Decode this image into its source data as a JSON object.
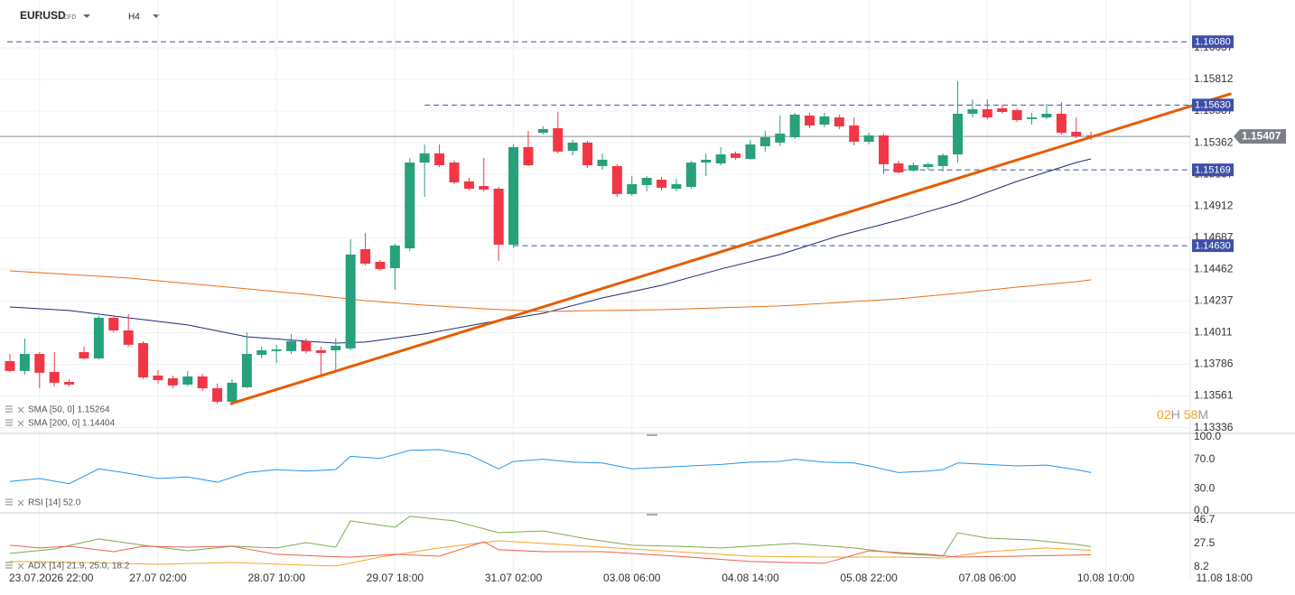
{
  "chart_data": [
    {
      "type": "candlestick",
      "symbol": "EURUSD",
      "market": "CFD",
      "timeframe": "H4",
      "up_color": "#26a17b",
      "down_color": "#f23645",
      "grid": true,
      "xlim": [
        -0.67,
        79.7
      ],
      "xticks": [
        {
          "value": 2,
          "label": "23.07.2026 22:00"
        },
        {
          "value": 10,
          "label": "27.07 02:00"
        },
        {
          "value": 18,
          "label": "28.07 10:00"
        },
        {
          "value": 26,
          "label": "29.07 18:00"
        },
        {
          "value": 34,
          "label": "31.07 02:00"
        },
        {
          "value": 42,
          "label": "03.08 06:00"
        },
        {
          "value": 50,
          "label": "04.08 14:00"
        },
        {
          "value": 58,
          "label": "05.08 22:00"
        },
        {
          "value": 66,
          "label": "07.08 06:00"
        },
        {
          "value": 74,
          "label": "10.08 10:00"
        },
        {
          "value": 82,
          "label": "11.08 18:00"
        }
      ],
      "ylim": [
        1.13295,
        1.16377
      ],
      "yticks": [
        1.16037,
        1.15812,
        1.15587,
        1.15362,
        1.15137,
        1.14912,
        1.14687,
        1.14462,
        1.14237,
        1.14011,
        1.13786,
        1.13561,
        1.13336
      ],
      "open": [
        1.13809,
        1.13739,
        1.1386,
        1.13732,
        1.13661,
        1.13873,
        1.13828,
        1.14117,
        1.14027,
        1.13937,
        1.13706,
        1.13687,
        1.13642,
        1.137,
        1.13616,
        1.1352,
        1.13623,
        1.13854,
        1.1388,
        1.1388,
        1.13951,
        1.13886,
        1.13886,
        1.13899,
        1.14605,
        1.14515,
        1.1447,
        1.14611,
        1.15221,
        1.15286,
        1.15221,
        1.15087,
        1.15054,
        1.15035,
        1.14637,
        1.15331,
        1.15433,
        1.15465,
        1.15305,
        1.15363,
        1.15196,
        1.15196,
        1.14997,
        1.15061,
        1.15099,
        1.15035,
        1.15048,
        1.15221,
        1.15215,
        1.15286,
        1.15247,
        1.15337,
        1.15363,
        1.15401,
        1.15555,
        1.15491,
        1.15542,
        1.15485,
        1.15369,
        1.15414,
        1.15215,
        1.15164,
        1.15189,
        1.15196,
        1.15279,
        1.15568,
        1.156,
        1.15607,
        1.15594,
        1.1553,
        1.15542,
        1.15568,
        1.1544,
        1.15414
      ],
      "high": [
        1.1386,
        1.1397,
        1.13873,
        1.13873,
        1.13681,
        1.13912,
        1.1413,
        1.1413,
        1.14143,
        1.13951,
        1.13745,
        1.13706,
        1.13739,
        1.13719,
        1.13649,
        1.13681,
        1.14014,
        1.13912,
        1.13925,
        1.14002,
        1.1397,
        1.13912,
        1.1397,
        1.14676,
        1.14721,
        1.14528,
        1.14644,
        1.15254,
        1.1535,
        1.1535,
        1.15234,
        1.15112,
        1.15254,
        1.15048,
        1.1535,
        1.15446,
        1.15478,
        1.15581,
        1.15382,
        1.15375,
        1.15286,
        1.15209,
        1.15125,
        1.15125,
        1.15119,
        1.15106,
        1.15234,
        1.15286,
        1.15331,
        1.15299,
        1.15382,
        1.15446,
        1.15555,
        1.15575,
        1.15575,
        1.15575,
        1.15562,
        1.15542,
        1.15433,
        1.15427,
        1.15234,
        1.15221,
        1.15221,
        1.15286,
        1.15799,
        1.15671,
        1.15671,
        1.15632,
        1.15607,
        1.15575,
        1.15639,
        1.15652,
        1.15542,
        1.1544
      ],
      "low": [
        1.13732,
        1.13713,
        1.13616,
        1.13629,
        1.13629,
        1.13822,
        1.13822,
        1.14014,
        1.13912,
        1.13681,
        1.13649,
        1.13616,
        1.13629,
        1.13597,
        1.13507,
        1.13494,
        1.13616,
        1.13828,
        1.13796,
        1.1386,
        1.13867,
        1.13713,
        1.13745,
        1.13886,
        1.1449,
        1.14451,
        1.14316,
        1.14592,
        1.14977,
        1.15189,
        1.15067,
        1.15022,
        1.15016,
        1.14522,
        1.14611,
        1.15196,
        1.1542,
        1.15286,
        1.15273,
        1.15183,
        1.1517,
        1.14977,
        1.14984,
        1.15016,
        1.15022,
        1.15016,
        1.15035,
        1.15125,
        1.15202,
        1.15241,
        1.15241,
        1.15299,
        1.15337,
        1.15388,
        1.15465,
        1.15472,
        1.15459,
        1.15343,
        1.1535,
        1.15138,
        1.15144,
        1.15157,
        1.1517,
        1.15157,
        1.15221,
        1.15542,
        1.1553,
        1.15568,
        1.1551,
        1.15491,
        1.1553,
        1.1542,
        1.15395,
        1.15382
      ],
      "close": [
        1.13739,
        1.1386,
        1.13726,
        1.13655,
        1.13642,
        1.13828,
        1.14117,
        1.14027,
        1.13925,
        1.13693,
        1.13674,
        1.13636,
        1.137,
        1.13616,
        1.1352,
        1.13655,
        1.1386,
        1.13886,
        1.13892,
        1.13951,
        1.1388,
        1.13867,
        1.13918,
        1.14567,
        1.14502,
        1.14464,
        1.14631,
        1.15221,
        1.15286,
        1.15202,
        1.1508,
        1.15035,
        1.15029,
        1.14637,
        1.15331,
        1.15202,
        1.15459,
        1.15299,
        1.15363,
        1.15202,
        1.15241,
        1.14997,
        1.15067,
        1.15112,
        1.15042,
        1.15067,
        1.15221,
        1.15241,
        1.15279,
        1.15254,
        1.1535,
        1.15401,
        1.15427,
        1.15562,
        1.15485,
        1.15549,
        1.15478,
        1.15369,
        1.15414,
        1.15209,
        1.15151,
        1.15202,
        1.15209,
        1.15273,
        1.15568,
        1.156,
        1.15542,
        1.15581,
        1.15523,
        1.15542,
        1.15568,
        1.15433,
        1.15408,
        1.15407
      ],
      "series": [
        {
          "name": "SMA [50, 0] 1.15264",
          "color": "#1f2a78",
          "x": [
            0,
            4,
            8,
            12,
            16,
            20,
            22,
            24,
            28,
            32,
            36,
            40,
            44,
            48,
            52,
            56,
            60,
            64,
            68,
            72,
            73
          ],
          "values": [
            1.14194,
            1.14169,
            1.14117,
            1.14066,
            1.13982,
            1.13951,
            1.13937,
            1.13944,
            1.14002,
            1.14079,
            1.14149,
            1.14258,
            1.14348,
            1.14464,
            1.14567,
            1.14701,
            1.14811,
            1.14933,
            1.15087,
            1.15221,
            1.15247
          ]
        },
        {
          "name": "SMA [200, 0] 1.14404",
          "color": "#e8701a",
          "x": [
            0,
            4,
            8,
            12,
            16,
            20,
            24,
            28,
            32,
            36,
            40,
            44,
            48,
            52,
            56,
            60,
            64,
            68,
            72,
            73
          ],
          "values": [
            1.14451,
            1.14425,
            1.144,
            1.14361,
            1.14323,
            1.14284,
            1.14239,
            1.14207,
            1.14181,
            1.14162,
            1.14169,
            1.14175,
            1.14188,
            1.14201,
            1.14226,
            1.14252,
            1.14291,
            1.14335,
            1.14374,
            1.14387
          ]
        }
      ],
      "trendline": {
        "color": "#e65c00",
        "x": [
          14.94,
          82.4
        ],
        "values": [
          1.13507,
          1.15709
        ]
      },
      "levels": [
        {
          "value": 1.1608,
          "label": "1.16080"
        },
        {
          "value": 1.1563,
          "label": "1.15630",
          "from": 28
        },
        {
          "value": 1.15169,
          "label": "1.15169",
          "from": 59
        },
        {
          "value": 1.1463,
          "label": "1.14630",
          "from": 34
        }
      ],
      "current_price": 1.15407,
      "timer": {
        "hours": "02",
        "hours_unit": "H",
        "minutes": "58",
        "minutes_unit": "M"
      }
    },
    {
      "type": "line",
      "ylim": [
        -2.4,
        104.9
      ],
      "yticks": [
        {
          "value": 100,
          "label": "100.0"
        },
        {
          "value": 70,
          "label": "70.0"
        },
        {
          "value": 30,
          "label": "30.0"
        },
        {
          "value": 0,
          "label": "0.0"
        }
      ],
      "series": [
        {
          "name": "RSI [14] 52.0",
          "color": "#2196f3",
          "x": [
            0,
            2,
            4,
            6,
            8,
            10,
            12,
            14,
            16,
            18,
            20,
            22,
            23,
            25,
            27,
            29,
            31,
            33,
            34,
            36,
            38,
            40,
            42,
            44,
            46,
            48,
            50,
            52,
            53,
            55,
            57,
            58,
            60,
            62,
            63,
            64,
            66,
            68,
            70,
            72,
            73
          ],
          "values": [
            40,
            44,
            37,
            57,
            51,
            44,
            46,
            39,
            52,
            56,
            54,
            56,
            74,
            71,
            82,
            83,
            76,
            57,
            67,
            70,
            66,
            65,
            57,
            59,
            61,
            63,
            66,
            67,
            70,
            66,
            65,
            61,
            52,
            54,
            56,
            65,
            63,
            61,
            62,
            56,
            52
          ]
        }
      ]
    },
    {
      "type": "line",
      "ylim": [
        -0.7,
        52.6
      ],
      "yticks": [
        46.7,
        27.5,
        8.2
      ],
      "legend": "ADX [14] 21.9, 25.0, 18.2",
      "series": [
        {
          "color": "#7cab4c",
          "x": [
            0,
            3,
            6,
            9,
            12,
            15,
            18,
            20,
            22,
            23,
            26,
            27,
            30,
            33,
            36,
            39,
            42,
            45,
            48,
            51,
            53,
            57,
            60,
            63,
            64,
            66,
            69,
            72,
            73
          ],
          "values": [
            19.3,
            23,
            31.2,
            26,
            21.5,
            25.2,
            23.8,
            28.2,
            24.5,
            46,
            40.8,
            49.7,
            46,
            36.3,
            37.8,
            31.2,
            26,
            25.2,
            23.8,
            26,
            27.5,
            23.8,
            19.3,
            17.1,
            36.3,
            31.9,
            30.4,
            26.7,
            25.0
          ]
        },
        {
          "color": "#f5a623",
          "x": [
            0,
            5,
            10,
            15,
            20,
            22,
            25,
            29,
            33,
            36,
            40,
            45,
            50,
            55,
            60,
            63,
            66,
            70,
            73
          ],
          "values": [
            12.7,
            11.9,
            10.4,
            11.9,
            9.7,
            9,
            16.3,
            23.8,
            29.7,
            27.5,
            24.5,
            20.8,
            17.1,
            16.3,
            16.3,
            15.6,
            20.8,
            23.8,
            21.9
          ]
        },
        {
          "color": "#e8634f",
          "x": [
            0,
            2,
            4,
            7,
            9,
            12,
            15,
            18,
            21,
            23,
            26,
            29,
            32,
            33,
            36,
            40,
            45,
            50,
            55,
            58,
            62,
            64,
            68,
            73
          ],
          "values": [
            26,
            23.8,
            25.2,
            20.8,
            25.2,
            24.5,
            25.2,
            18.6,
            17.1,
            16.3,
            18.6,
            17.1,
            28.9,
            22.3,
            20.8,
            20.8,
            17.1,
            12.7,
            11.2,
            21.5,
            18.6,
            16.3,
            17.1,
            18.2
          ]
        }
      ]
    }
  ]
}
